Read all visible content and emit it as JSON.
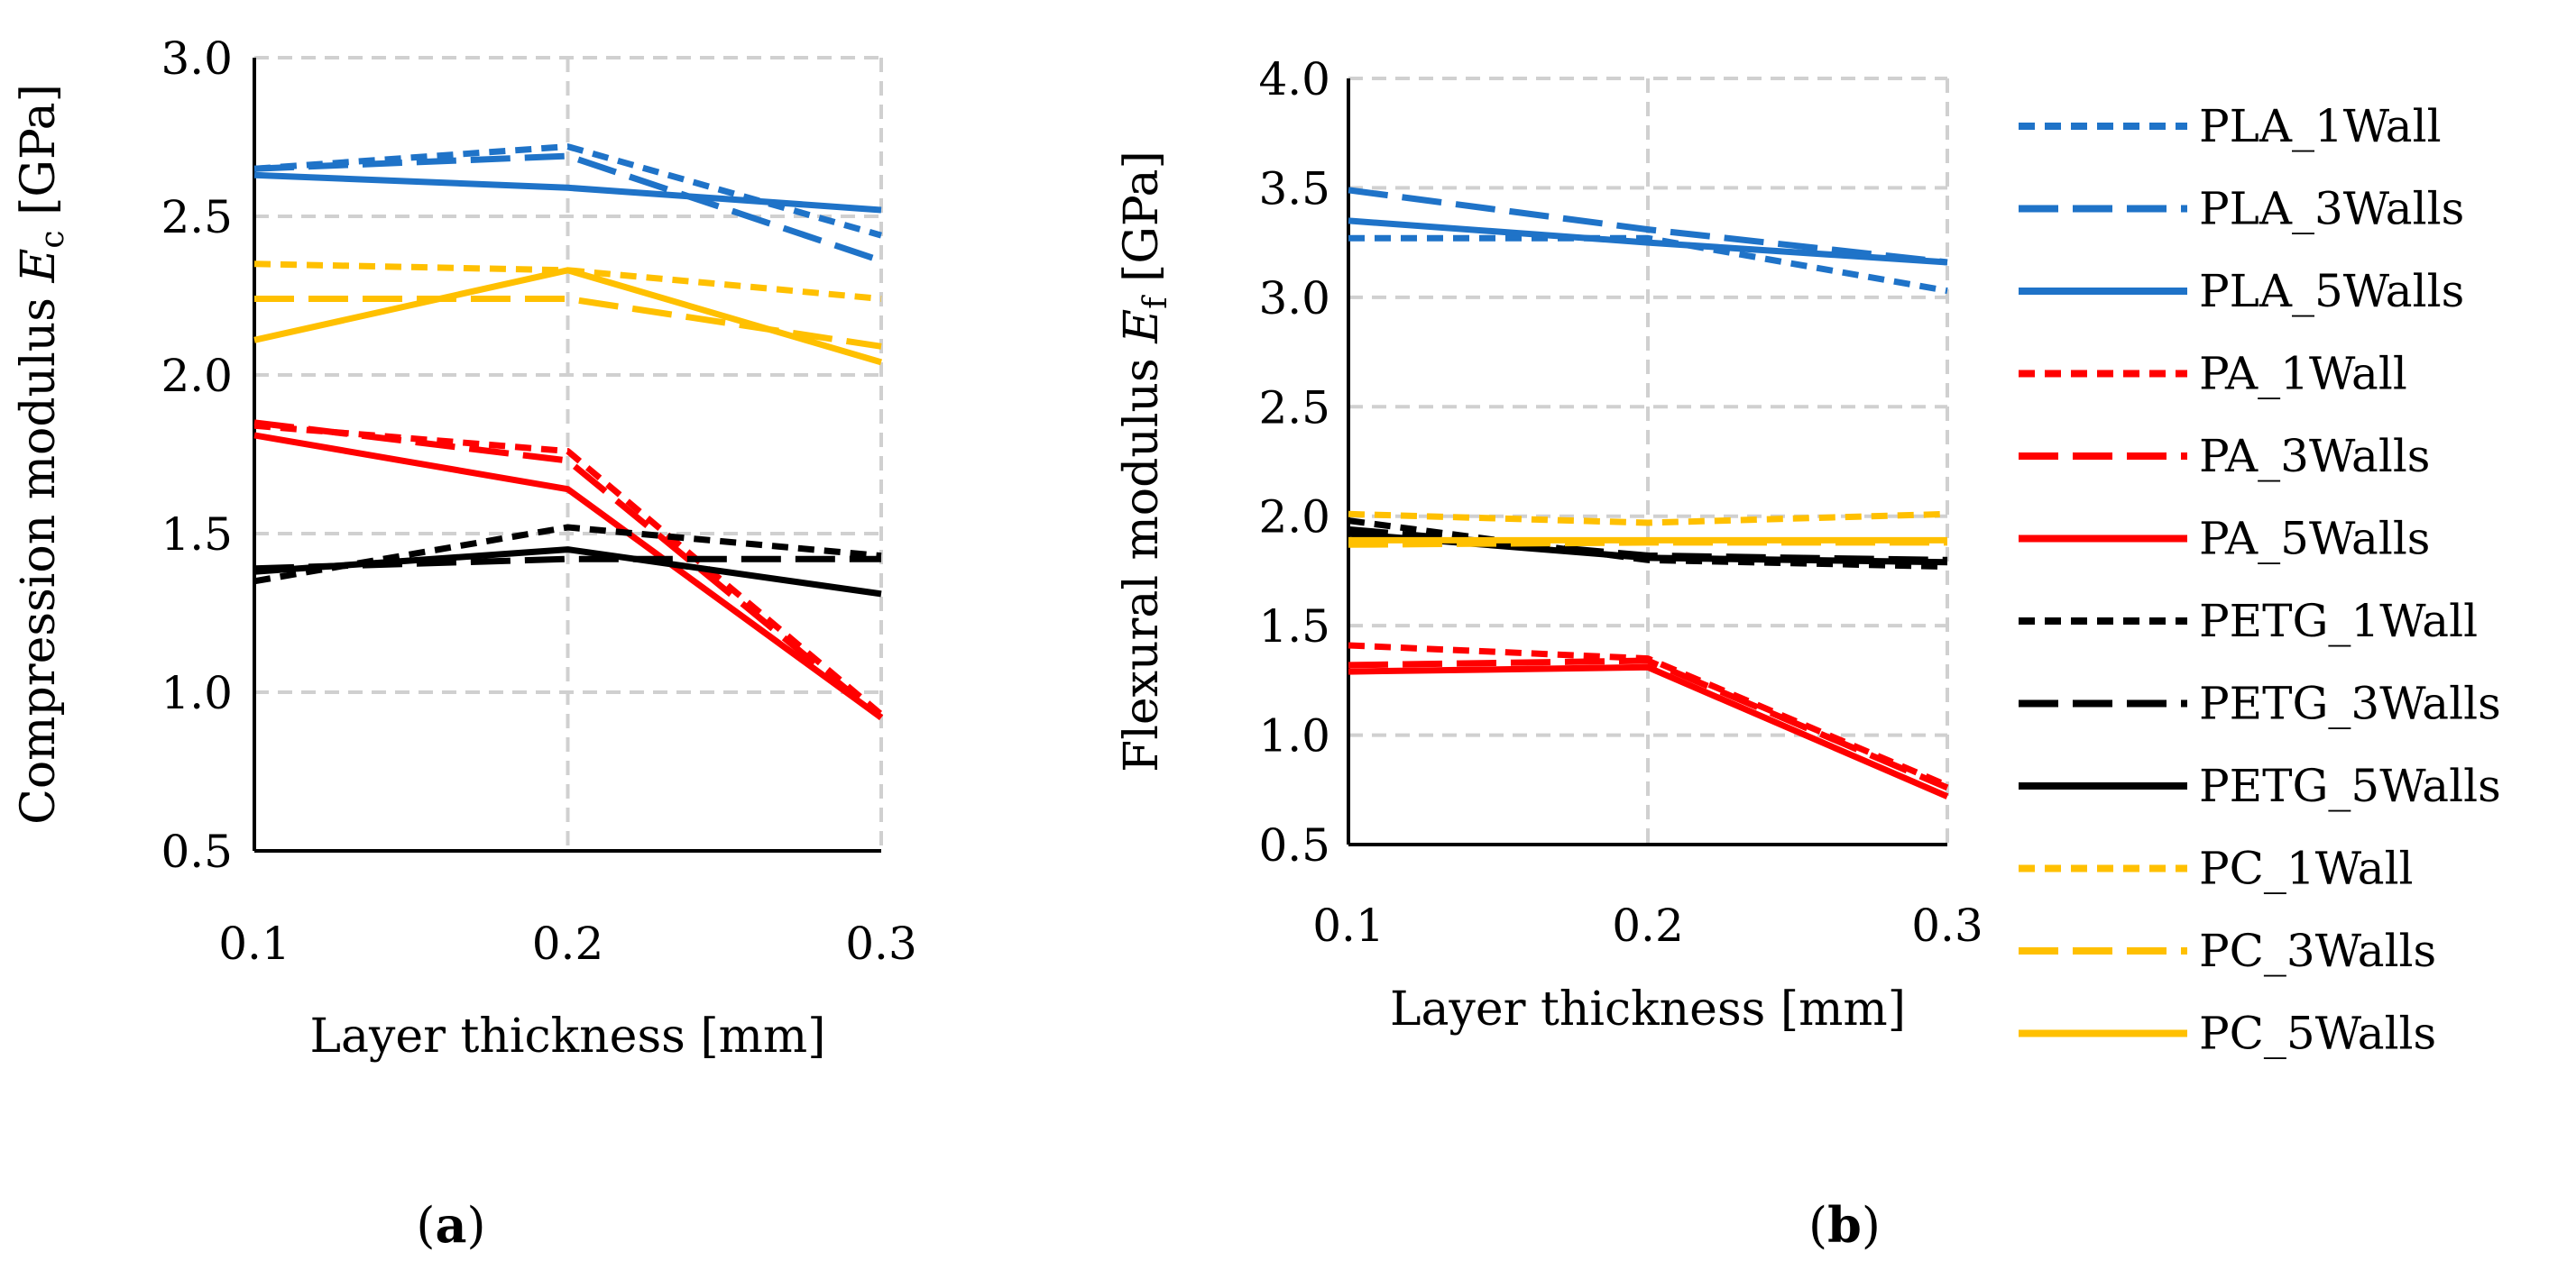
{
  "chart_data": [
    {
      "type": "line",
      "panel_label": "a",
      "title": "",
      "xlabel": "Layer thickness [mm]",
      "ylabel_prefix": "Compression modulus ",
      "ylabel_symbol": "E",
      "ylabel_subscript": "c",
      "ylabel_suffix": " [GPa]",
      "categories": [
        "0.1",
        "0.2",
        "0.3"
      ],
      "ylim": [
        0.5,
        3.0
      ],
      "yticks": [
        "0.5",
        "1.0",
        "1.5",
        "2.0",
        "2.5",
        "3.0"
      ],
      "grid": true,
      "series": [
        {
          "name": "PLA_1Wall",
          "values": [
            2.65,
            2.72,
            2.44
          ]
        },
        {
          "name": "PLA_3Walls",
          "values": [
            2.65,
            2.69,
            2.36
          ]
        },
        {
          "name": "PLA_5Walls",
          "values": [
            2.63,
            2.59,
            2.52
          ]
        },
        {
          "name": "PA_1Wall",
          "values": [
            1.84,
            1.76,
            0.93
          ]
        },
        {
          "name": "PA_3Walls",
          "values": [
            1.85,
            1.73,
            0.92
          ]
        },
        {
          "name": "PA_5Walls",
          "values": [
            1.81,
            1.64,
            0.92
          ]
        },
        {
          "name": "PETG_1Wall",
          "values": [
            1.35,
            1.52,
            1.43
          ]
        },
        {
          "name": "PETG_3Walls",
          "values": [
            1.39,
            1.42,
            1.42
          ]
        },
        {
          "name": "PETG_5Walls",
          "values": [
            1.38,
            1.45,
            1.31
          ]
        },
        {
          "name": "PC_1Wall",
          "values": [
            2.35,
            2.33,
            2.24
          ]
        },
        {
          "name": "PC_3Walls",
          "values": [
            2.24,
            2.24,
            2.09
          ]
        },
        {
          "name": "PC_5Walls",
          "values": [
            2.11,
            2.33,
            2.04
          ]
        }
      ]
    },
    {
      "type": "line",
      "panel_label": "b",
      "title": "",
      "xlabel": "Layer thickness [mm]",
      "ylabel_prefix": "Flexural modulus ",
      "ylabel_symbol": "E",
      "ylabel_subscript": "f",
      "ylabel_suffix": " [GPa]",
      "categories": [
        "0.1",
        "0.2",
        "0.3"
      ],
      "ylim": [
        0.5,
        4.0
      ],
      "yticks": [
        "0.5",
        "1.0",
        "1.5",
        "2.0",
        "2.5",
        "3.0",
        "3.5",
        "4.0"
      ],
      "grid": true,
      "legend_position": "right",
      "series": [
        {
          "name": "PLA_1Wall",
          "values": [
            3.27,
            3.27,
            3.03
          ]
        },
        {
          "name": "PLA_3Walls",
          "values": [
            3.49,
            3.31,
            3.16
          ]
        },
        {
          "name": "PLA_5Walls",
          "values": [
            3.35,
            3.25,
            3.16
          ]
        },
        {
          "name": "PA_1Wall",
          "values": [
            1.41,
            1.35,
            0.77
          ]
        },
        {
          "name": "PA_3Walls",
          "values": [
            1.32,
            1.34,
            0.76
          ]
        },
        {
          "name": "PA_5Walls",
          "values": [
            1.29,
            1.31,
            0.72
          ]
        },
        {
          "name": "PETG_1Wall",
          "values": [
            1.98,
            1.8,
            1.77
          ]
        },
        {
          "name": "PETG_3Walls",
          "values": [
            1.94,
            1.82,
            1.8
          ]
        },
        {
          "name": "PETG_5Walls",
          "values": [
            1.92,
            1.81,
            1.79
          ]
        },
        {
          "name": "PC_1Wall",
          "values": [
            2.01,
            1.97,
            2.01
          ]
        },
        {
          "name": "PC_3Walls",
          "values": [
            1.87,
            1.88,
            1.88
          ]
        },
        {
          "name": "PC_5Walls",
          "values": [
            1.89,
            1.89,
            1.89
          ]
        }
      ]
    }
  ],
  "series_style": {
    "PLA": "#1f73c8",
    "PA": "#ff0000",
    "PETG": "#000000",
    "PC": "#ffc000"
  },
  "legend": {
    "items": [
      "PLA_1Wall",
      "PLA_3Walls",
      "PLA_5Walls",
      "PA_1Wall",
      "PA_3Walls",
      "PA_5Walls",
      "PETG_1Wall",
      "PETG_3Walls",
      "PETG_5Walls",
      "PC_1Wall",
      "PC_3Walls",
      "PC_5Walls"
    ]
  },
  "captions": {
    "a": "a",
    "b": "b"
  }
}
